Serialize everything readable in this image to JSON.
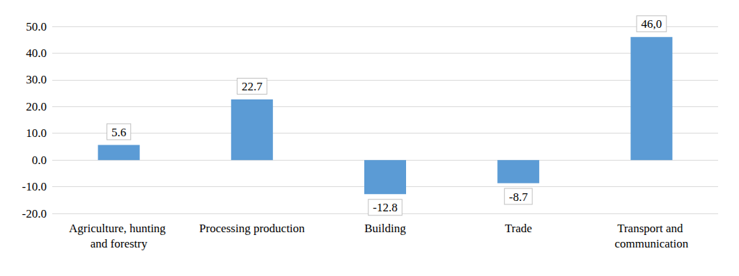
{
  "chart_data": {
    "type": "bar",
    "categories": [
      "Agriculture, hunting and forestry",
      "Processing production",
      "Building",
      "Trade",
      "Transport and communication"
    ],
    "values": [
      5.6,
      22.7,
      -12.8,
      -8.7,
      46.0
    ],
    "value_labels": [
      "5.6",
      "22.7",
      "-12.8",
      "-8.7",
      "46,0"
    ],
    "color": "#5b9bd5",
    "ylim": [
      -20,
      50
    ],
    "yticks": [
      {
        "value": -20,
        "label": "-20.0"
      },
      {
        "value": -10,
        "label": "-10.0"
      },
      {
        "value": 0,
        "label": "0.0"
      },
      {
        "value": 10,
        "label": "10.0"
      },
      {
        "value": 20,
        "label": "20.0"
      },
      {
        "value": 30,
        "label": "30.0"
      },
      {
        "value": 40,
        "label": "40.0"
      },
      {
        "value": 50,
        "label": "50.0"
      }
    ],
    "grid": true,
    "data_labels": true
  }
}
